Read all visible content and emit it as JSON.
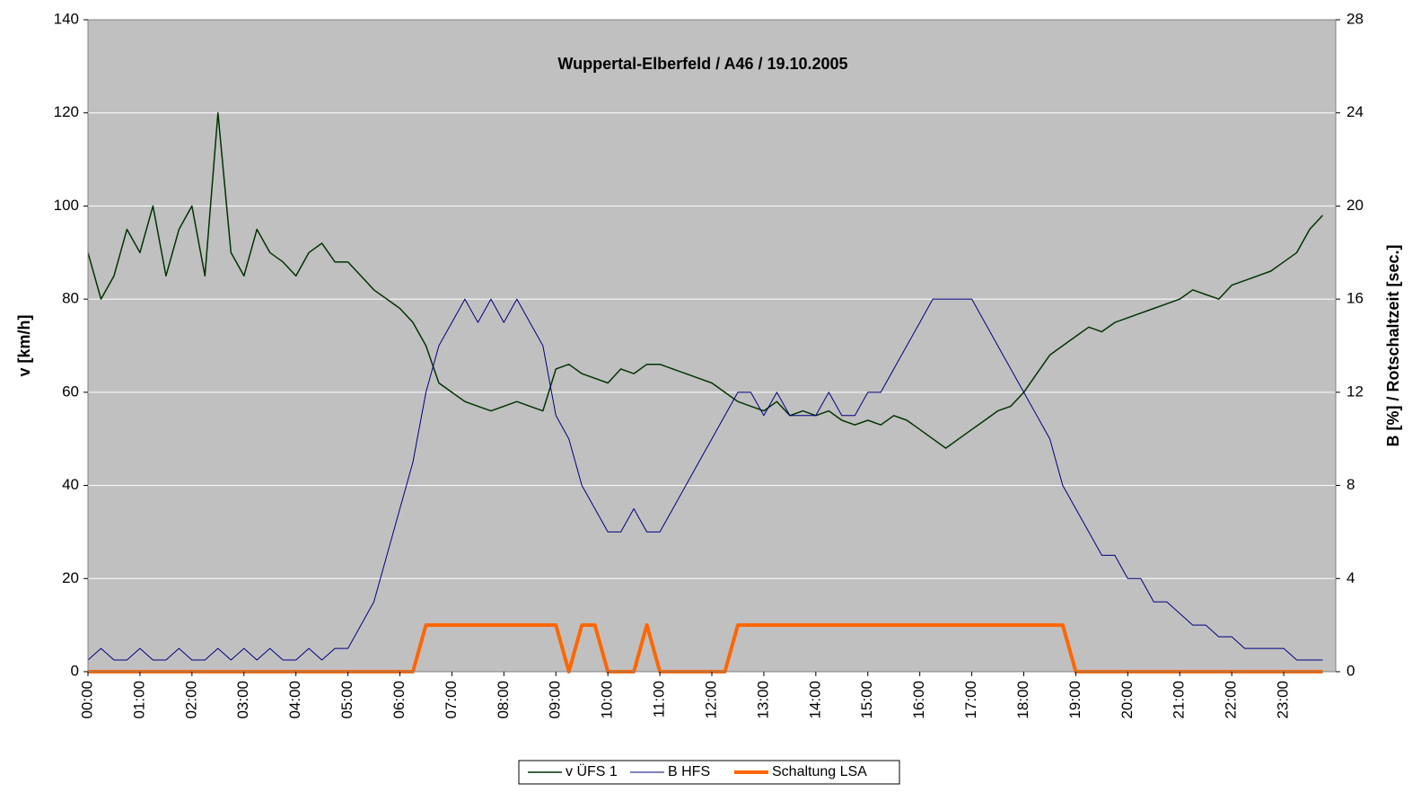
{
  "chart_data": {
    "type": "line",
    "title": "Wuppertal-Elberfeld / A46 / 19.10.2005",
    "y_label": "v [km/h]",
    "y2_label": "B [%] / Rotschaltzeit [sec.]",
    "categories": [
      "00:00",
      null,
      null,
      null,
      "01:00",
      null,
      null,
      null,
      "02:00",
      null,
      null,
      null,
      "03:00",
      null,
      null,
      null,
      "04:00",
      null,
      null,
      null,
      "05:00",
      null,
      null,
      null,
      "06:00",
      null,
      null,
      null,
      "07:00",
      null,
      null,
      null,
      "08:00",
      null,
      null,
      null,
      "09:00",
      null,
      null,
      null,
      "10:00",
      null,
      null,
      null,
      "11:00",
      null,
      null,
      null,
      "12:00",
      null,
      null,
      null,
      "13:00",
      null,
      null,
      null,
      "14:00",
      null,
      null,
      null,
      "15:00",
      null,
      null,
      null,
      "16:00",
      null,
      null,
      null,
      "17:00",
      null,
      null,
      null,
      "18:00",
      null,
      null,
      null,
      "19:00",
      null,
      null,
      null,
      "20:00",
      null,
      null,
      null,
      "21:00",
      null,
      null,
      null,
      "22:00",
      null,
      null,
      null,
      "23:00",
      null,
      null,
      null
    ],
    "ylim": [
      0,
      140
    ],
    "yticks": [
      0,
      20,
      40,
      60,
      80,
      100,
      120,
      140
    ],
    "y2lim": [
      0,
      28
    ],
    "y2ticks": [
      0,
      4,
      8,
      12,
      16,
      20,
      24,
      28
    ],
    "grid": true,
    "legend": "bottom",
    "series": [
      {
        "name": "v ÜFS 1",
        "color": "#003300",
        "values": [
          90,
          80,
          85,
          95,
          90,
          100,
          85,
          95,
          100,
          85,
          120,
          90,
          85,
          95,
          90,
          88,
          85,
          90,
          92,
          88,
          88,
          85,
          82,
          80,
          78,
          75,
          70,
          62,
          60,
          58,
          57,
          56,
          57,
          58,
          57,
          56,
          65,
          66,
          64,
          63,
          62,
          65,
          64,
          66,
          66,
          65,
          64,
          63,
          62,
          60,
          58,
          57,
          56,
          58,
          55,
          56,
          55,
          56,
          54,
          53,
          54,
          53,
          55,
          54,
          52,
          50,
          48,
          50,
          52,
          54,
          56,
          57,
          60,
          64,
          68,
          70,
          72,
          74,
          73,
          75,
          76,
          77,
          78,
          79,
          80,
          82,
          81,
          80,
          83,
          84,
          85,
          86,
          88,
          90,
          95,
          98
        ]
      },
      {
        "name": "B HFS",
        "color": "#000080",
        "axis": "y2",
        "values": [
          0.5,
          1,
          0.5,
          0.5,
          1,
          0.5,
          0.5,
          1,
          0.5,
          0.5,
          1,
          0.5,
          1,
          0.5,
          1,
          0.5,
          0.5,
          1,
          0.5,
          1,
          1,
          2,
          3,
          5,
          7,
          9,
          12,
          14,
          15,
          16,
          15,
          16,
          15,
          16,
          15,
          14,
          11,
          10,
          8,
          7,
          6,
          6,
          7,
          6,
          6,
          7,
          8,
          9,
          10,
          11,
          12,
          12,
          11,
          12,
          11,
          11,
          11,
          12,
          11,
          11,
          12,
          12,
          13,
          14,
          15,
          16,
          16,
          16,
          16,
          15,
          14,
          13,
          12,
          11,
          10,
          8,
          7,
          6,
          5,
          5,
          4,
          4,
          3,
          3,
          2.5,
          2,
          2,
          1.5,
          1.5,
          1,
          1,
          1,
          1,
          0.5,
          0.5,
          0.5
        ]
      },
      {
        "name": "Schaltung LSA",
        "color": "#ff6600",
        "axis": "y2",
        "values": [
          0,
          0,
          0,
          0,
          0,
          0,
          0,
          0,
          0,
          0,
          0,
          0,
          0,
          0,
          0,
          0,
          0,
          0,
          0,
          0,
          0,
          0,
          0,
          0,
          0,
          0,
          2,
          2,
          2,
          2,
          2,
          2,
          2,
          2,
          2,
          2,
          2,
          0,
          2,
          2,
          0,
          0,
          0,
          2,
          0,
          0,
          0,
          0,
          0,
          0,
          2,
          2,
          2,
          2,
          2,
          2,
          2,
          2,
          2,
          2,
          2,
          2,
          2,
          2,
          2,
          2,
          2,
          2,
          2,
          2,
          2,
          2,
          2,
          2,
          2,
          2,
          0,
          0,
          0,
          0,
          0,
          0,
          0,
          0,
          0,
          0,
          0,
          0,
          0,
          0,
          0,
          0,
          0,
          0,
          0,
          0
        ]
      }
    ]
  }
}
